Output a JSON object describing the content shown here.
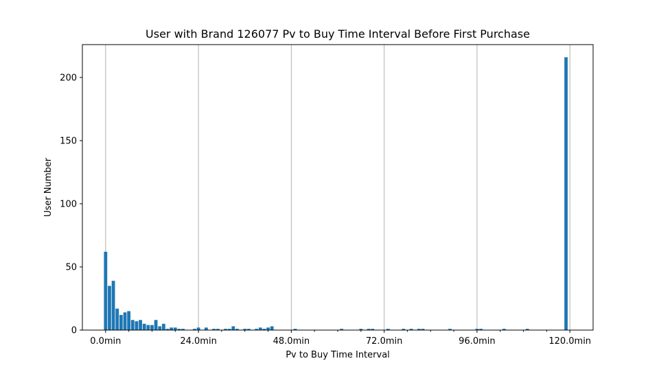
{
  "chart_data": {
    "type": "bar",
    "title": "User with Brand 126077 Pv to Buy Time Interval Before First Purchase",
    "xlabel": "Pv to Buy Time Interval",
    "ylabel": "User Number",
    "xlim": [
      -6,
      126
    ],
    "ylim": [
      0,
      226
    ],
    "grid": "x-major",
    "xticks": [
      {
        "value": 0,
        "label": "0.0min"
      },
      {
        "value": 24,
        "label": "24.0min"
      },
      {
        "value": 48,
        "label": "48.0min"
      },
      {
        "value": 72,
        "label": "72.0min"
      },
      {
        "value": 96,
        "label": "96.0min"
      },
      {
        "value": 120,
        "label": "120.0min"
      }
    ],
    "yticks": [
      {
        "value": 0,
        "label": "0"
      },
      {
        "value": 50,
        "label": "50"
      },
      {
        "value": 100,
        "label": "100"
      },
      {
        "value": 150,
        "label": "150"
      },
      {
        "value": 200,
        "label": "200"
      }
    ],
    "bar_width": 0.85,
    "color": "#1f77b4",
    "x": [
      0,
      1,
      2,
      3,
      4,
      5,
      6,
      7,
      8,
      9,
      10,
      11,
      12,
      13,
      14,
      15,
      16,
      17,
      18,
      19,
      20,
      23,
      24,
      26,
      28,
      29,
      31,
      32,
      33,
      34,
      36,
      37,
      39,
      40,
      41,
      42,
      43,
      49,
      61,
      66,
      68,
      69,
      73,
      77,
      79,
      81,
      82,
      89,
      96,
      97,
      103,
      109,
      119
    ],
    "values": [
      62,
      35,
      39,
      17,
      12,
      14,
      15,
      8,
      7,
      8,
      5,
      4,
      4,
      8,
      3,
      5,
      1,
      2,
      2,
      1,
      1,
      1,
      2,
      2,
      1,
      1,
      1,
      1,
      3,
      1,
      1,
      1,
      1,
      2,
      1,
      2,
      3,
      1,
      1,
      1,
      1,
      1,
      1,
      1,
      1,
      1,
      1,
      1,
      1,
      1,
      1,
      1,
      216
    ]
  }
}
